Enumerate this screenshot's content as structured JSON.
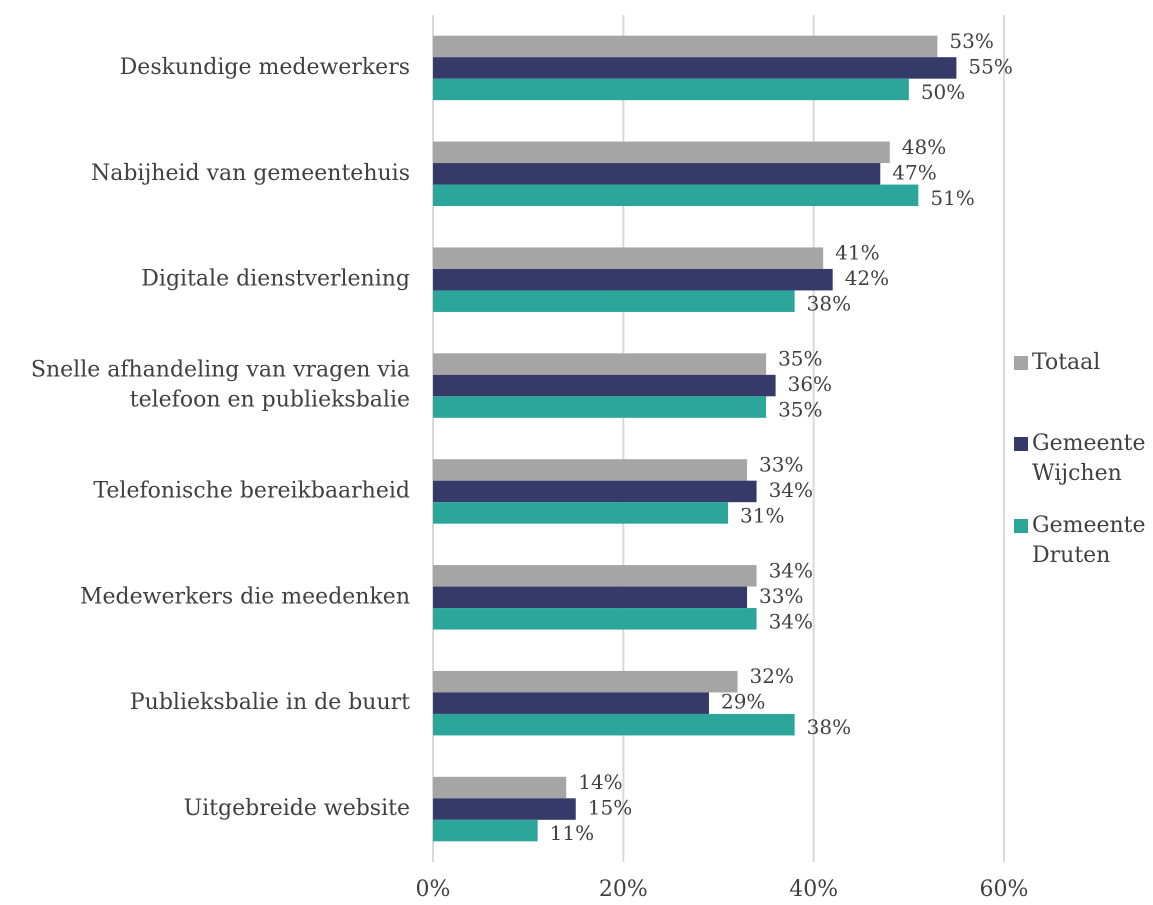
{
  "chart_data": {
    "type": "bar",
    "orientation": "horizontal",
    "categories": [
      "Deskundige medewerkers",
      "Nabijheid van gemeentehuis",
      "Digitale dienstverlening",
      "Snelle afhandeling van vragen via\ntelefoon en publieksbalie",
      "Telefonische bereikbaarheid",
      "Medewerkers die meedenken",
      "Publieksbalie in de buurt",
      "Uitgebreide website"
    ],
    "series": [
      {
        "name": "Totaal",
        "color": "#a5a5a5",
        "values": [
          53,
          48,
          41,
          35,
          33,
          34,
          32,
          14
        ],
        "value_labels": [
          "53%",
          "48%",
          "41%",
          "35%",
          "33%",
          "34%",
          "32%",
          "14%"
        ]
      },
      {
        "name": "Gemeente Wijchen",
        "color": "#363a68",
        "values": [
          55,
          47,
          42,
          36,
          34,
          33,
          29,
          15
        ],
        "value_labels": [
          "55%",
          "47%",
          "42%",
          "36%",
          "34%",
          "33%",
          "29%",
          "15%"
        ]
      },
      {
        "name": "Gemeente Druten",
        "color": "#2ca69a",
        "values": [
          50,
          51,
          38,
          35,
          31,
          34,
          38,
          11
        ],
        "value_labels": [
          "50%",
          "51%",
          "38%",
          "35%",
          "31%",
          "34%",
          "38%",
          "11%"
        ]
      }
    ],
    "xlim": [
      0,
      60
    ],
    "xticks": [
      {
        "value": 0,
        "label": "0%"
      },
      {
        "value": 20,
        "label": "20%"
      },
      {
        "value": 40,
        "label": "40%"
      },
      {
        "value": 60,
        "label": "60%"
      }
    ],
    "grid": true,
    "legend": "right"
  }
}
